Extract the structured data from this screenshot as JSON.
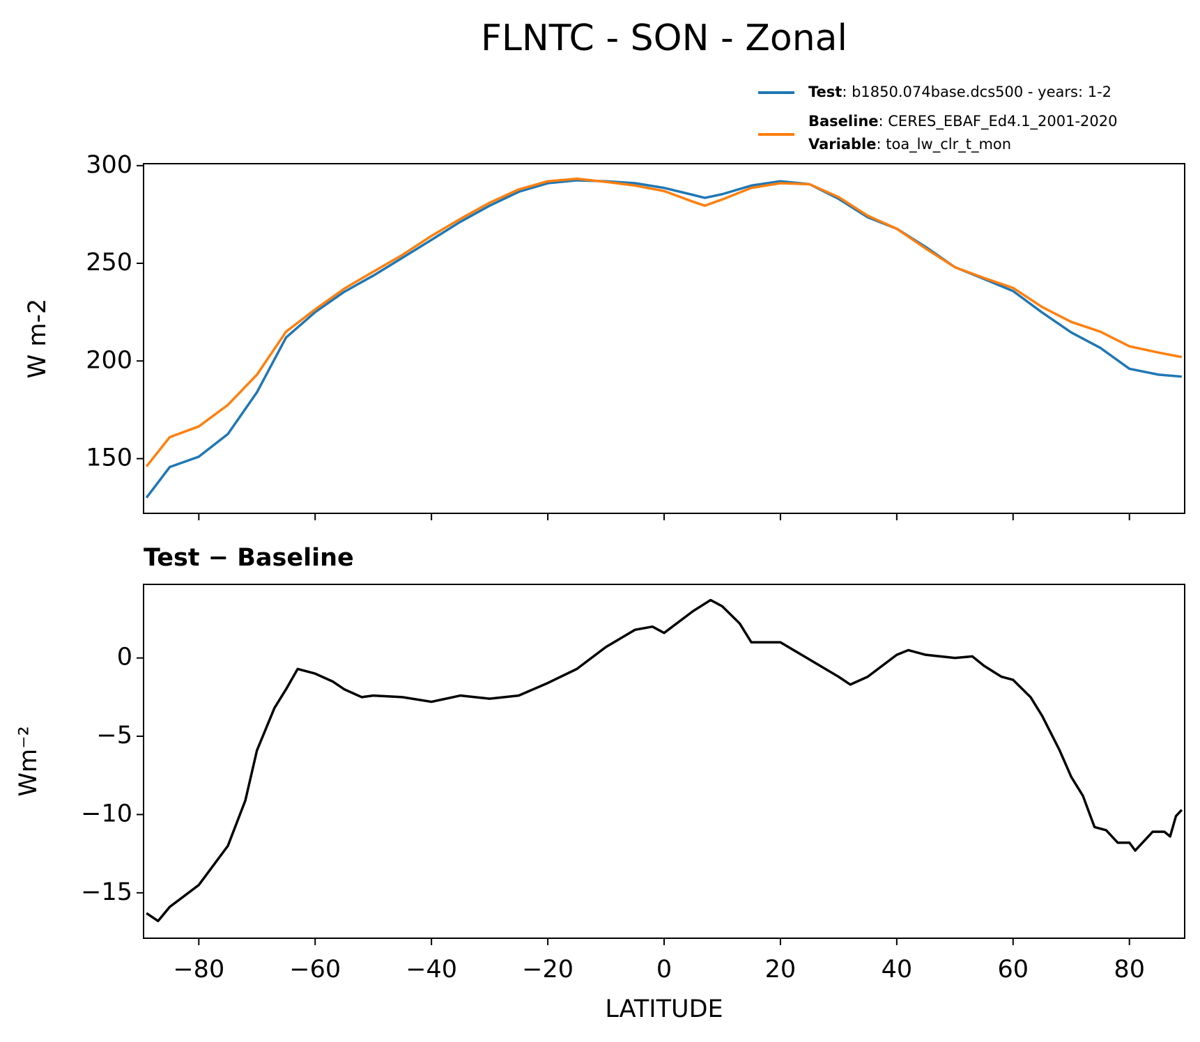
{
  "title": "FLNTC - SON - Zonal",
  "chart_data": [
    {
      "type": "line",
      "ylabel": "W m-2",
      "x": [
        -89,
        -85,
        -80,
        -75,
        -70,
        -65,
        -60,
        -55,
        -50,
        -45,
        -40,
        -35,
        -30,
        -25,
        -20,
        -15,
        -10,
        -5,
        0,
        5,
        7,
        10,
        15,
        20,
        25,
        30,
        35,
        40,
        45,
        50,
        55,
        60,
        65,
        70,
        75,
        80,
        85,
        89
      ],
      "series": [
        {
          "name": "Test",
          "description": ": b1850.074base.dcs500 - years: 1-2",
          "color": "#1f77b4",
          "values": [
            130,
            145.7,
            151,
            162.6,
            184,
            212,
            225,
            235.4,
            243.7,
            252.8,
            262,
            271.3,
            279.5,
            286.6,
            291,
            292.5,
            292,
            291,
            288.6,
            285,
            283.5,
            285.4,
            289.8,
            292,
            290.5,
            283,
            273.6,
            267.7,
            258.3,
            248,
            242,
            235.8,
            224.8,
            214.6,
            206.7,
            196,
            193,
            192
          ]
        },
        {
          "name": "Baseline",
          "description": ": CERES_EBAF_Ed4.1_2001-2020",
          "color": "#ff7f0e",
          "values": [
            146,
            161,
            166.5,
            177.5,
            193,
            215,
            226.4,
            237,
            245.7,
            254.3,
            264,
            272.8,
            281,
            287.8,
            292,
            293.3,
            291.7,
            289.8,
            287,
            281.5,
            279.5,
            282.7,
            288.6,
            291,
            290.5,
            283.9,
            274.4,
            267.7,
            257.5,
            248,
            242.5,
            237.4,
            227.6,
            220,
            215,
            207.5,
            204.3,
            202
          ]
        }
      ],
      "variable": {
        "name": "Variable",
        "description": ": toa_lw_clr_t_mon"
      },
      "xlim": [
        -89.5,
        89.5
      ],
      "xticks": [
        -80,
        -60,
        -40,
        -20,
        0,
        20,
        40,
        60,
        80
      ],
      "ylim": [
        122,
        301
      ],
      "yticks": [
        150,
        200,
        250,
        300
      ]
    },
    {
      "type": "line",
      "title": "Test − Baseline",
      "ylabel": "Wm⁻²",
      "xlabel": "LATITUDE",
      "x": [
        -89,
        -87,
        -85,
        -80,
        -75,
        -72,
        -70,
        -67,
        -65,
        -63,
        -60,
        -57,
        -55,
        -52,
        -50,
        -45,
        -40,
        -35,
        -30,
        -25,
        -20,
        -15,
        -10,
        -5,
        -2,
        0,
        5,
        8,
        10,
        13,
        15,
        20,
        25,
        30,
        32,
        35,
        40,
        42,
        45,
        50,
        53,
        55,
        58,
        60,
        63,
        65,
        68,
        70,
        72,
        74,
        76,
        78,
        80,
        81,
        84,
        86,
        87,
        88,
        89
      ],
      "series": [
        {
          "color": "#000000",
          "values": [
            -16.3,
            -16.8,
            -15.9,
            -14.5,
            -12,
            -9.1,
            -5.9,
            -3.2,
            -2,
            -0.7,
            -1,
            -1.5,
            -2,
            -2.5,
            -2.4,
            -2.5,
            -2.8,
            -2.4,
            -2.6,
            -2.4,
            -1.6,
            -0.7,
            0.7,
            1.8,
            2.0,
            1.6,
            3.0,
            3.7,
            3.3,
            2.2,
            1.0,
            1.0,
            -0.1,
            -1.2,
            -1.7,
            -1.2,
            0.2,
            0.5,
            0.2,
            0,
            0.1,
            -0.5,
            -1.2,
            -1.4,
            -2.5,
            -3.7,
            -5.9,
            -7.6,
            -8.8,
            -10.8,
            -11,
            -11.8,
            -11.8,
            -12.3,
            -11.1,
            -11.1,
            -11.4,
            -10.1,
            -9.7
          ]
        }
      ],
      "xlim": [
        -89.5,
        89.5
      ],
      "xticks": [
        {
          "value": -80,
          "label": "−80"
        },
        {
          "value": -60,
          "label": "−60"
        },
        {
          "value": -40,
          "label": "−40"
        },
        {
          "value": -20,
          "label": "−20"
        },
        0,
        20,
        40,
        60,
        80
      ],
      "ylim": [
        -17.9,
        4.7
      ],
      "yticks": [
        {
          "value": -15,
          "label": "−15"
        },
        {
          "value": -10,
          "label": "−10"
        },
        {
          "value": -5,
          "label": "−5"
        },
        0
      ]
    }
  ]
}
